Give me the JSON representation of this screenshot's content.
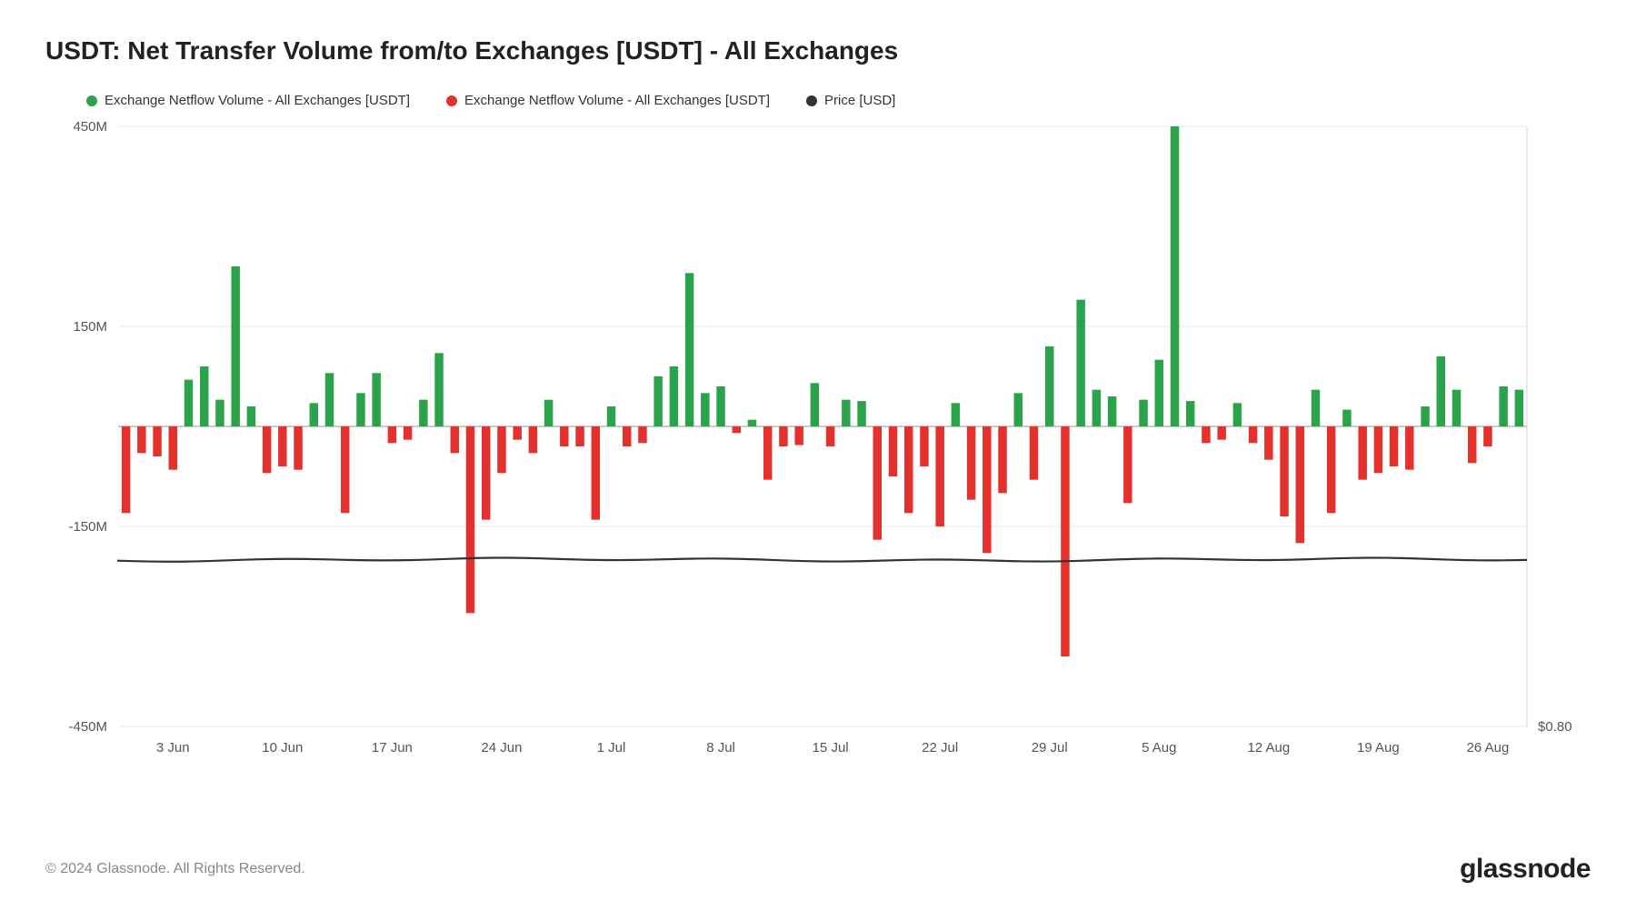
{
  "title": "USDT: Net Transfer Volume from/to Exchanges [USDT] - All Exchanges",
  "legend": {
    "positive": {
      "label": "Exchange Netflow Volume - All Exchanges [USDT]",
      "color": "#2aa34a"
    },
    "negative": {
      "label": "Exchange Netflow Volume - All Exchanges [USDT]",
      "color": "#e4312b"
    },
    "price": {
      "label": "Price [USD]",
      "color": "#333333"
    }
  },
  "chart": {
    "type": "bar+line",
    "background_color": "#ffffff",
    "grid_color": "#e8e8e8",
    "zero_line_color": "#b8b8b8",
    "price_line_color": "#333333",
    "ylim": [
      -450,
      450
    ],
    "ytick_step": 150,
    "yticks": [
      {
        "v": 450,
        "label": "450M"
      },
      {
        "v": 150,
        "label": "150M"
      },
      {
        "v": -150,
        "label": "-150M"
      },
      {
        "v": -450,
        "label": "-450M"
      }
    ],
    "right_label": "$0.80",
    "right_label_at": -450,
    "xticks": [
      "3 Jun",
      "10 Jun",
      "17 Jun",
      "24 Jun",
      "1 Jul",
      "8 Jul",
      "15 Jul",
      "22 Jul",
      "29 Jul",
      "5 Aug",
      "12 Aug",
      "19 Aug",
      "26 Aug"
    ],
    "xtick_positions": [
      3,
      10,
      17,
      24,
      31,
      38,
      45,
      52,
      59,
      66,
      73,
      80,
      87
    ],
    "bar_width_ratio": 0.55,
    "values": [
      -130,
      -40,
      -45,
      -65,
      70,
      90,
      40,
      240,
      30,
      -70,
      -60,
      -65,
      35,
      80,
      -130,
      50,
      80,
      -25,
      -20,
      40,
      110,
      -40,
      -280,
      -140,
      -70,
      -20,
      -40,
      40,
      -30,
      -30,
      -140,
      30,
      -30,
      -25,
      75,
      90,
      230,
      50,
      60,
      -10,
      10,
      -80,
      -30,
      -28,
      65,
      -30,
      40,
      38,
      -170,
      -75,
      -130,
      -60,
      -150,
      35,
      -110,
      -190,
      -100,
      50,
      -80,
      120,
      -345,
      190,
      55,
      45,
      -115,
      40,
      100,
      450,
      38,
      -25,
      -20,
      35,
      -25,
      -50,
      -135,
      -175,
      55,
      -130,
      25,
      -80,
      -70,
      -60,
      -65,
      30,
      105,
      55,
      -55,
      -30,
      60,
      55
    ],
    "price_series_y": -200
  },
  "footer": {
    "copyright": "© 2024 Glassnode. All Rights Reserved.",
    "brand": "glassnode"
  }
}
